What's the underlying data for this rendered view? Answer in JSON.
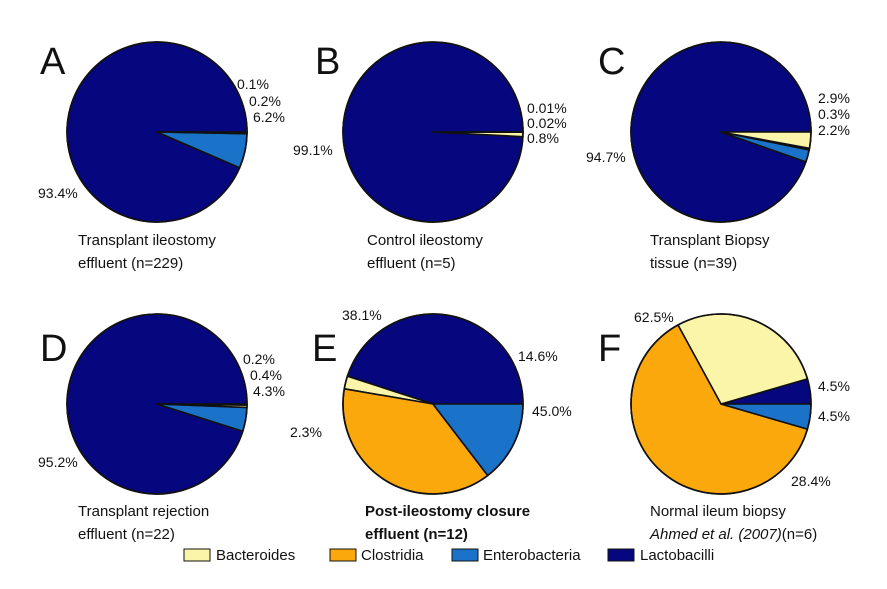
{
  "colors": {
    "Bacteroides": "#fbf5a9",
    "Clostridia": "#fba80d",
    "Enterobacteria": "#1a73c8",
    "Lactobacilli": "#06077e"
  },
  "legend": [
    "Bacteroides",
    "Clostridia",
    "Enterobacteria",
    "Lactobacilli"
  ],
  "chart_data": [
    {
      "type": "pie",
      "panel": "A",
      "caption": [
        "Transplant ileostomy",
        "effluent (n=229)"
      ],
      "slices": [
        {
          "name": "Lactobacilli",
          "value": 93.4,
          "label": "93.4%"
        },
        {
          "name": "Enterobacteria",
          "value": 6.2,
          "label": "6.2%"
        },
        {
          "name": "Bacteroides",
          "value": 0.2,
          "label": "0.2%"
        },
        {
          "name": "Clostridia",
          "value": 0.1,
          "label": "0.1%"
        }
      ]
    },
    {
      "type": "pie",
      "panel": "B",
      "caption": [
        "Control ileostomy",
        "effluent (n=5)"
      ],
      "slices": [
        {
          "name": "Lactobacilli",
          "value": 99.1,
          "label": "99.1%"
        },
        {
          "name": "Bacteroides",
          "value": 0.8,
          "label": "0.8%"
        },
        {
          "name": "Enterobacteria",
          "value": 0.02,
          "label": "0.02%"
        },
        {
          "name": "Clostridia",
          "value": 0.01,
          "label": "0.01%"
        }
      ]
    },
    {
      "type": "pie",
      "panel": "C",
      "caption": [
        "Transplant Biopsy",
        "tissue (n=39)"
      ],
      "slices": [
        {
          "name": "Lactobacilli",
          "value": 94.7,
          "label": "94.7%"
        },
        {
          "name": "Enterobacteria",
          "value": 2.2,
          "label": "2.2%"
        },
        {
          "name": "Clostridia",
          "value": 0.3,
          "label": "0.3%"
        },
        {
          "name": "Bacteroides",
          "value": 2.9,
          "label": "2.9%"
        }
      ]
    },
    {
      "type": "pie",
      "panel": "D",
      "caption": [
        "Transplant rejection",
        "effluent (n=22)"
      ],
      "slices": [
        {
          "name": "Lactobacilli",
          "value": 95.2,
          "label": "95.2%"
        },
        {
          "name": "Enterobacteria",
          "value": 4.3,
          "label": "4.3%"
        },
        {
          "name": "Bacteroides",
          "value": 0.4,
          "label": "0.4%"
        },
        {
          "name": "Clostridia",
          "value": 0.2,
          "label": "0.2%"
        }
      ]
    },
    {
      "type": "pie",
      "panel": "E",
      "caption": [
        "Post-ileostomy closure",
        "effluent (n=12)"
      ],
      "slices": [
        {
          "name": "Lactobacilli",
          "value": 45.0,
          "label": "45.0%"
        },
        {
          "name": "Bacteroides",
          "value": 2.3,
          "label": "2.3%"
        },
        {
          "name": "Clostridia",
          "value": 38.1,
          "label": "38.1%"
        },
        {
          "name": "Enterobacteria",
          "value": 14.6,
          "label": "14.6%"
        }
      ]
    },
    {
      "type": "pie",
      "panel": "F",
      "caption": [
        "Normal ileum biopsy",
        "Ahmed et al. (2007)",
        "(n=6)"
      ],
      "slices": [
        {
          "name": "Lactobacilli",
          "value": 4.5,
          "label": "4.5%"
        },
        {
          "name": "Bacteroides",
          "value": 28.4,
          "label": "28.4%"
        },
        {
          "name": "Clostridia",
          "value": 62.5,
          "label": "62.5%"
        },
        {
          "name": "Enterobacteria",
          "value": 4.5,
          "label": "4.5%"
        }
      ]
    }
  ]
}
